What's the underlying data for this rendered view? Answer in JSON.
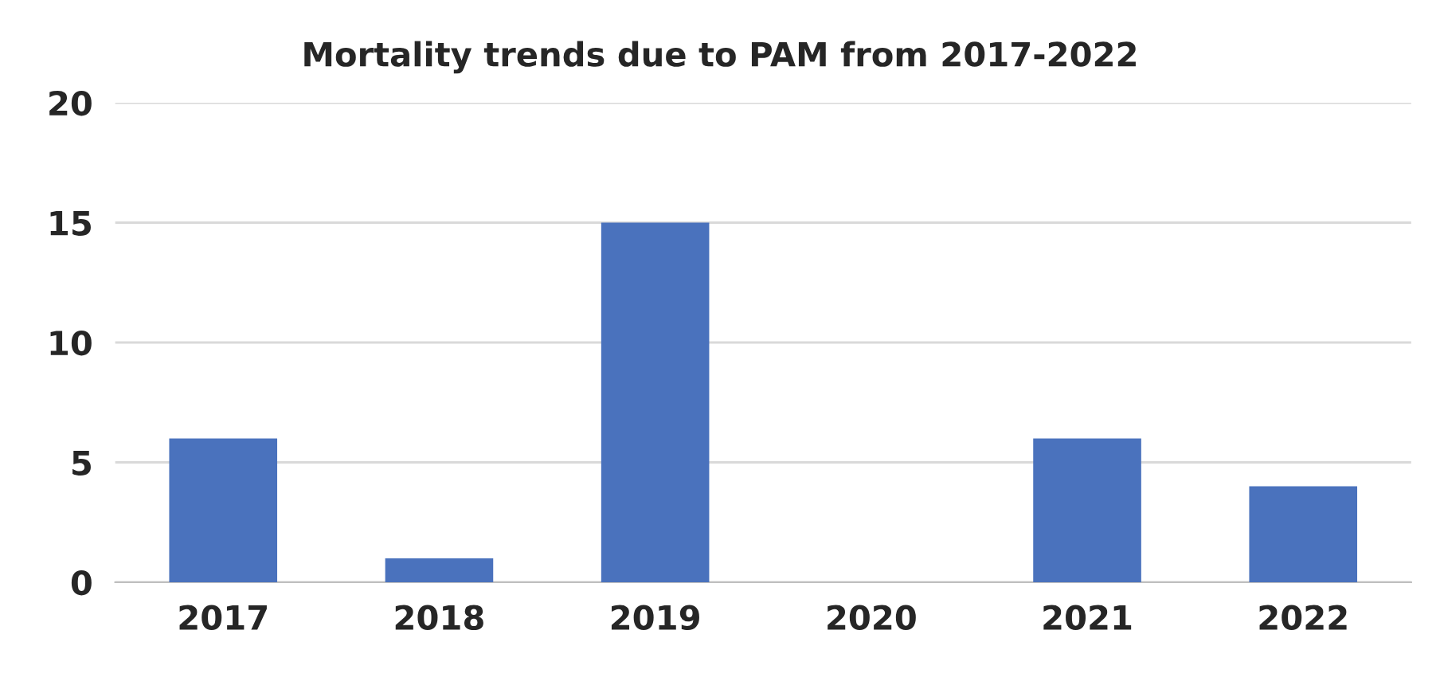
{
  "chart_data": {
    "type": "bar",
    "title": "Mortality trends due to PAM from 2017-2022",
    "categories": [
      "2017",
      "2018",
      "2019",
      "2020",
      "2021",
      "2022"
    ],
    "values": [
      6,
      1,
      15,
      0,
      6,
      4
    ],
    "color": "#4a72bd",
    "ylim": [
      0,
      20
    ],
    "yticks": [
      0,
      5,
      10,
      15,
      20
    ],
    "grid": "y",
    "legend": false
  }
}
